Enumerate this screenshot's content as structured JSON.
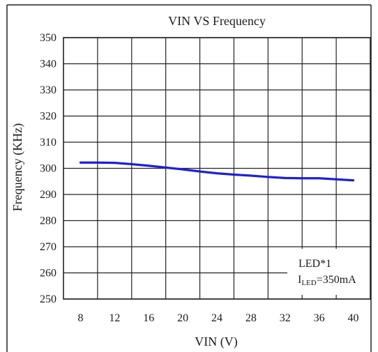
{
  "chart_data": {
    "type": "line",
    "title": "VIN VS Frequency",
    "xlabel": "VIN (V)",
    "ylabel": "Frequency (KHz)",
    "xlim": [
      6,
      42
    ],
    "ylim": [
      250,
      350
    ],
    "x_ticks": [
      8,
      12,
      16,
      20,
      24,
      28,
      32,
      36,
      40
    ],
    "y_ticks": [
      250,
      260,
      270,
      280,
      290,
      300,
      310,
      320,
      330,
      340,
      350
    ],
    "grid": true,
    "series": [
      {
        "color": "#1f1fd8",
        "x": [
          8,
          10,
          12,
          14,
          16,
          18,
          20,
          22,
          24,
          26,
          28,
          30,
          32,
          34,
          36,
          38,
          40
        ],
        "y": [
          302.2,
          302.2,
          302.1,
          301.6,
          301.0,
          300.3,
          299.6,
          298.8,
          298.1,
          297.6,
          297.2,
          296.7,
          296.3,
          296.2,
          296.2,
          295.8,
          295.4
        ]
      }
    ],
    "annotation": {
      "line1": "LED*1",
      "line2_main": "I",
      "line2_sub": "LED",
      "line2_tail": "=350mA"
    }
  }
}
